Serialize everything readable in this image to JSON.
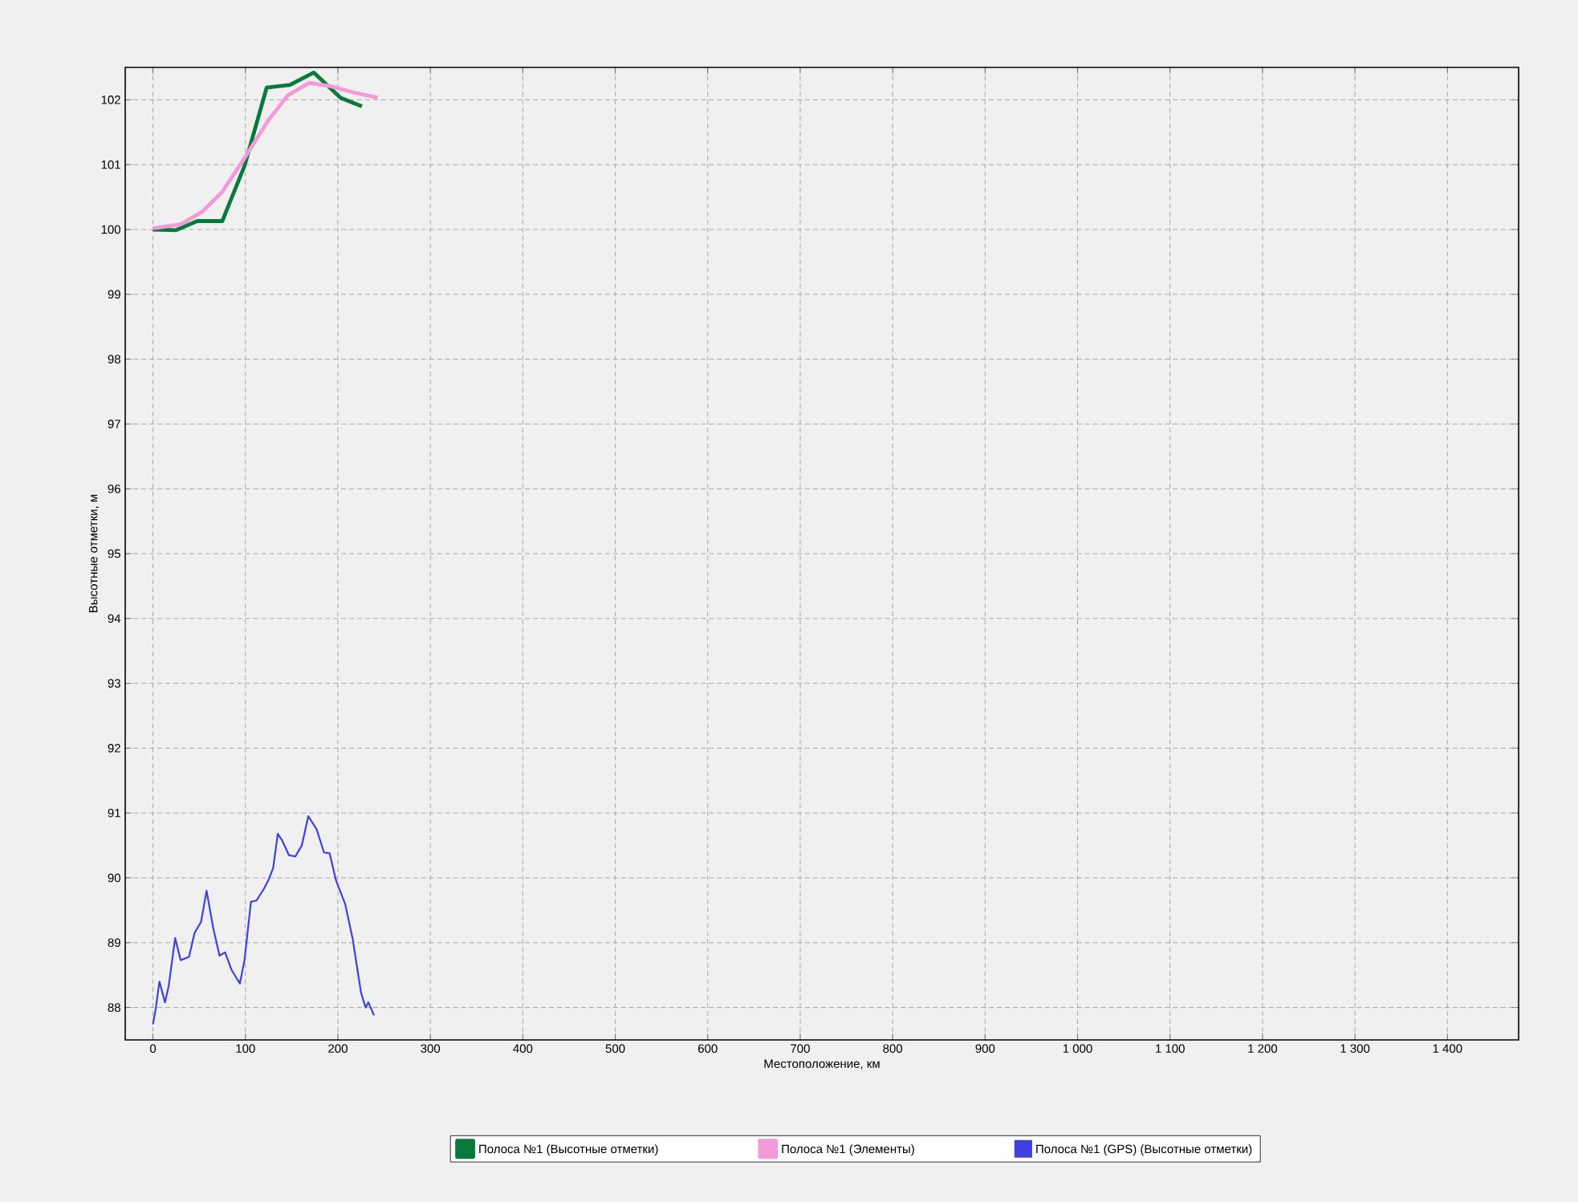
{
  "chart_data": {
    "type": "line",
    "xlabel": "Местоположение, км",
    "ylabel": "Высотные отметки, м",
    "xlim": [
      -30,
      1477
    ],
    "ylim": [
      87.5,
      102.5
    ],
    "xticks": [
      0,
      100,
      200,
      300,
      400,
      500,
      600,
      700,
      800,
      900,
      {
        "value": 1000,
        "label": "1 000"
      },
      {
        "value": 1100,
        "label": "1 100"
      },
      {
        "value": 1200,
        "label": "1 200"
      },
      {
        "value": 1300,
        "label": "1 300"
      },
      {
        "value": 1400,
        "label": "1 400"
      }
    ],
    "yticks": [
      88,
      89,
      90,
      91,
      92,
      93,
      94,
      95,
      96,
      97,
      98,
      99,
      100,
      101,
      102
    ],
    "grid": true,
    "legend": "bottom",
    "marker": "none",
    "line_style": "solid",
    "series": [
      {
        "name": "Полоса №1 (Высотные отметки)",
        "color": "#0a7a3c",
        "x": [
          0,
          25,
          48,
          75,
          99,
          123,
          148,
          174,
          203,
          226
        ],
        "values": [
          100.0,
          99.99,
          100.13,
          100.13,
          100.98,
          102.19,
          102.23,
          102.42,
          102.03,
          101.9
        ]
      },
      {
        "name": "Полоса №1 (Элементы)",
        "color": "#f49ad8",
        "x": [
          0,
          30,
          53,
          75,
          99,
          125,
          146,
          169,
          192,
          218,
          243
        ],
        "values": [
          100.02,
          100.08,
          100.27,
          100.58,
          101.1,
          101.69,
          102.07,
          102.26,
          102.21,
          102.11,
          102.03
        ]
      },
      {
        "name": "Полоса №1 (GPS) (Высотные отметки)",
        "color": "#4040e0",
        "x": [
          0,
          3,
          7,
          13,
          17,
          24,
          30,
          39,
          45,
          52,
          58,
          65,
          72,
          78,
          85,
          94,
          99,
          106,
          112,
          120,
          125,
          130,
          135,
          140,
          147,
          154,
          161,
          168,
          177,
          185,
          191,
          198,
          208,
          216,
          225,
          230,
          233,
          239
        ],
        "values": [
          87.74,
          87.98,
          88.4,
          88.08,
          88.33,
          89.07,
          88.73,
          88.78,
          89.15,
          89.32,
          89.8,
          89.24,
          88.8,
          88.85,
          88.58,
          88.37,
          88.73,
          89.63,
          89.65,
          89.83,
          89.97,
          90.15,
          90.68,
          90.57,
          90.35,
          90.33,
          90.5,
          90.95,
          90.75,
          90.39,
          90.38,
          89.96,
          89.59,
          89.06,
          88.23,
          88.0,
          88.08,
          87.88
        ]
      }
    ]
  }
}
